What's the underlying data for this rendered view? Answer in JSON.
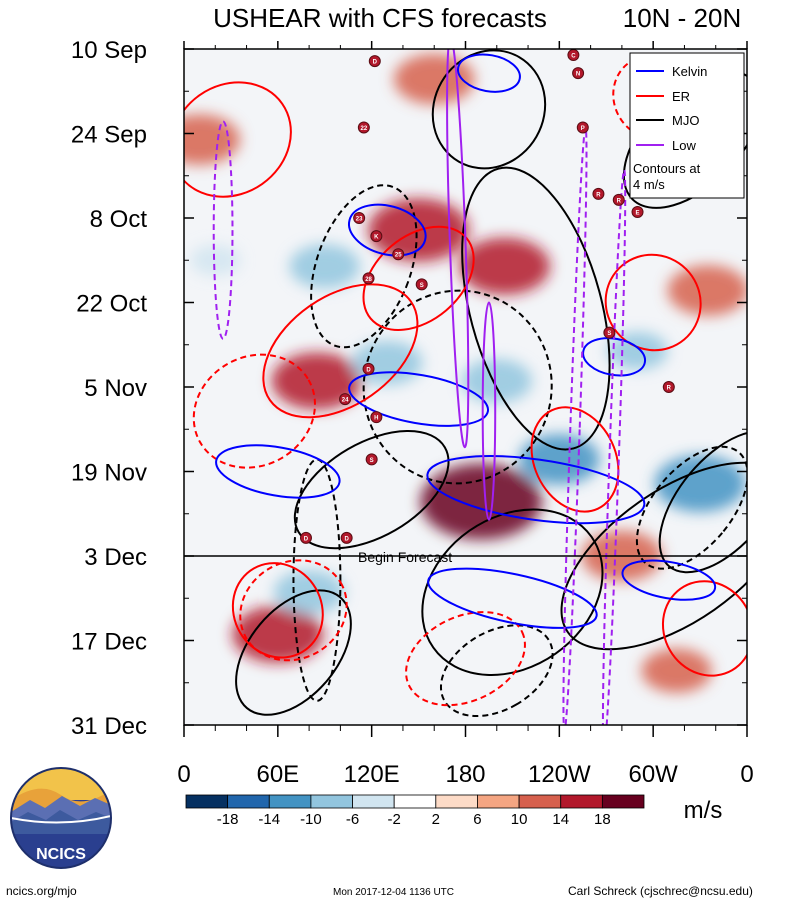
{
  "chart_data": {
    "type": "heatmap",
    "title": "USHEAR with CFS forecasts",
    "latitude_band": "10N - 20N",
    "y_tick_labels": [
      "10 Sep",
      "24 Sep",
      "8 Oct",
      "22 Oct",
      "5 Nov",
      "19 Nov",
      "3 Dec",
      "17 Dec",
      "31 Dec"
    ],
    "x_tick_labels": [
      "0",
      "60E",
      "120E",
      "180",
      "120W",
      "60W",
      "0"
    ],
    "x_range_deg": [
      0,
      360
    ],
    "y_range_days": [
      0,
      112
    ],
    "forecast_start_day": 84,
    "forecast_label": "Begin Forecast",
    "colorbar": {
      "levels": [
        -18,
        -14,
        -10,
        -6,
        -2,
        2,
        6,
        10,
        14,
        18
      ],
      "level_labels": [
        "-18",
        "-14",
        "-10",
        "-6",
        "-2",
        "2",
        "6",
        "10",
        "14",
        "18"
      ],
      "colors": [
        "#053061",
        "#2166ac",
        "#4393c3",
        "#92c5de",
        "#d1e5f0",
        "#ffffff",
        "#fddbc7",
        "#f4a582",
        "#d6604d",
        "#b2182b",
        "#67001f"
      ],
      "units": "m/s"
    },
    "legend": {
      "position": "top-right",
      "items": [
        {
          "label": "Kelvin",
          "color": "#0000ff"
        },
        {
          "label": "ER",
          "color": "#ff0000"
        },
        {
          "label": "MJO",
          "color": "#000000"
        },
        {
          "label": "Low",
          "color": "#a020f0"
        }
      ],
      "note": "Contours at\n4 m/s"
    },
    "anomaly_blobs": [
      {
        "lon": 150,
        "day": 30,
        "value": 16
      },
      {
        "lon": 190,
        "day": 75,
        "value": 20
      },
      {
        "lon": 205,
        "day": 36,
        "value": 14
      },
      {
        "lon": 10,
        "day": 15,
        "value": 12
      },
      {
        "lon": 85,
        "day": 55,
        "value": 14
      },
      {
        "lon": 335,
        "day": 40,
        "value": 12
      },
      {
        "lon": 160,
        "day": 5,
        "value": 12
      },
      {
        "lon": 60,
        "day": 97,
        "value": 14
      },
      {
        "lon": 280,
        "day": 84,
        "value": 12
      },
      {
        "lon": 315,
        "day": 103,
        "value": 10
      },
      {
        "lon": 130,
        "day": 52,
        "value": -10
      },
      {
        "lon": 240,
        "day": 68,
        "value": -12
      },
      {
        "lon": 330,
        "day": 72,
        "value": -14
      },
      {
        "lon": 80,
        "day": 90,
        "value": -10
      },
      {
        "lon": 90,
        "day": 36,
        "value": -10
      },
      {
        "lon": 290,
        "day": 50,
        "value": -8
      },
      {
        "lon": 20,
        "day": 35,
        "value": -6
      },
      {
        "lon": 200,
        "day": 55,
        "value": -10
      }
    ],
    "contours": [
      {
        "wave": "MJO",
        "lon": 225,
        "day": 43,
        "sign": "+",
        "rx": 42,
        "ry": 24,
        "rot": -15
      },
      {
        "wave": "MJO",
        "lon": 210,
        "day": 90,
        "sign": "+",
        "rx": 48,
        "ry": 16,
        "rot": 55
      },
      {
        "wave": "MJO",
        "lon": 315,
        "day": 84,
        "sign": "+",
        "rx": 42,
        "ry": 22,
        "rot": 55
      },
      {
        "wave": "MJO",
        "lon": 70,
        "day": 100,
        "sign": "+",
        "rx": 28,
        "ry": 12,
        "rot": 40
      },
      {
        "wave": "MJO",
        "lon": 120,
        "day": 73,
        "sign": "+",
        "rx": 30,
        "ry": 14,
        "rot": 60
      },
      {
        "wave": "MJO",
        "lon": 345,
        "day": 75,
        "sign": "+",
        "rx": 28,
        "ry": 14,
        "rot": 40
      },
      {
        "wave": "MJO",
        "lon": 195,
        "day": 10,
        "sign": "+",
        "rx": 35,
        "ry": 10,
        "rot": 30
      },
      {
        "wave": "MJO",
        "lon": 325,
        "day": 15,
        "sign": "+",
        "rx": 30,
        "ry": 14,
        "rot": 45
      },
      {
        "wave": "MJO",
        "lon": 175,
        "day": 56,
        "sign": "-",
        "rx": 60,
        "ry": 16,
        "rot": 15
      },
      {
        "wave": "MJO",
        "lon": 115,
        "day": 36,
        "sign": "-",
        "rx": 30,
        "ry": 14,
        "rot": 20
      },
      {
        "wave": "MJO",
        "lon": 325,
        "day": 76,
        "sign": "-",
        "rx": 25,
        "ry": 12,
        "rot": 40
      },
      {
        "wave": "MJO",
        "lon": 85,
        "day": 88,
        "sign": "-",
        "rx": 15,
        "ry": 20,
        "rot": 0
      },
      {
        "wave": "MJO",
        "lon": 200,
        "day": 103,
        "sign": "-",
        "rx": 25,
        "ry": 10,
        "rot": 60
      },
      {
        "wave": "ER",
        "lon": 30,
        "day": 15,
        "sign": "+",
        "rx": 40,
        "ry": 9,
        "rot": -35
      },
      {
        "wave": "ER",
        "lon": 100,
        "day": 50,
        "sign": "+",
        "rx": 55,
        "ry": 9,
        "rot": -35
      },
      {
        "wave": "ER",
        "lon": 250,
        "day": 68,
        "sign": "+",
        "rx": 26,
        "ry": 9,
        "rot": -25
      },
      {
        "wave": "ER",
        "lon": 335,
        "day": 96,
        "sign": "+",
        "rx": 28,
        "ry": 8,
        "rot": -30
      },
      {
        "wave": "ER",
        "lon": 300,
        "day": 42,
        "sign": "+",
        "rx": 30,
        "ry": 8,
        "rot": -40
      },
      {
        "wave": "ER",
        "lon": 60,
        "day": 93,
        "sign": "+",
        "rx": 28,
        "ry": 8,
        "rot": -30
      },
      {
        "wave": "ER",
        "lon": 150,
        "day": 38,
        "sign": "+",
        "rx": 40,
        "ry": 7,
        "rot": -40
      },
      {
        "wave": "ER",
        "lon": 45,
        "day": 60,
        "sign": "-",
        "rx": 40,
        "ry": 9,
        "rot": -30
      },
      {
        "wave": "ER",
        "lon": 180,
        "day": 101,
        "sign": "-",
        "rx": 40,
        "ry": 7,
        "rot": -25
      },
      {
        "wave": "ER",
        "lon": 70,
        "day": 93,
        "sign": "-",
        "rx": 35,
        "ry": 8,
        "rot": -30
      },
      {
        "wave": "ER",
        "lon": 300,
        "day": 8,
        "sign": "-",
        "rx": 25,
        "ry": 7,
        "rot": -30
      },
      {
        "wave": "Kelvin",
        "lon": 225,
        "day": 73,
        "sign": "+",
        "rx": 70,
        "ry": 5,
        "rot": 8
      },
      {
        "wave": "Kelvin",
        "lon": 150,
        "day": 58,
        "sign": "+",
        "rx": 45,
        "ry": 4,
        "rot": 10
      },
      {
        "wave": "Kelvin",
        "lon": 210,
        "day": 91,
        "sign": "+",
        "rx": 55,
        "ry": 4,
        "rot": 12
      },
      {
        "wave": "Kelvin",
        "lon": 60,
        "day": 70,
        "sign": "+",
        "rx": 40,
        "ry": 4,
        "rot": 10
      },
      {
        "wave": "Kelvin",
        "lon": 310,
        "day": 88,
        "sign": "+",
        "rx": 30,
        "ry": 3,
        "rot": 10
      },
      {
        "wave": "Kelvin",
        "lon": 130,
        "day": 30,
        "sign": "+",
        "rx": 25,
        "ry": 4,
        "rot": 15
      },
      {
        "wave": "Kelvin",
        "lon": 195,
        "day": 4,
        "sign": "+",
        "rx": 20,
        "ry": 3,
        "rot": 10
      },
      {
        "wave": "Kelvin",
        "lon": 275,
        "day": 51,
        "sign": "+",
        "rx": 20,
        "ry": 3,
        "rot": 10
      },
      {
        "wave": "Low",
        "lon": 175,
        "day": 32,
        "sign": "+",
        "rx": 5,
        "ry": 34,
        "rot": -2
      },
      {
        "wave": "Low",
        "lon": 195,
        "day": 60,
        "sign": "+",
        "rx": 4,
        "ry": 18,
        "rot": 0
      },
      {
        "wave": "Low",
        "lon": 25,
        "day": 30,
        "sign": "-",
        "rx": 6,
        "ry": 18,
        "rot": 0
      },
      {
        "wave": "Low",
        "lon": 250,
        "day": 63,
        "sign": "-",
        "rx": 3,
        "ry": 50,
        "rot": 2
      },
      {
        "wave": "Low",
        "lon": 275,
        "day": 68,
        "sign": "-",
        "rx": 3,
        "ry": 48,
        "rot": 2
      }
    ],
    "storm_markers": [
      {
        "label": "D",
        "lon": 122,
        "day": 2
      },
      {
        "label": "22",
        "lon": 115,
        "day": 13
      },
      {
        "label": "23",
        "lon": 112,
        "day": 28
      },
      {
        "label": "K",
        "lon": 123,
        "day": 31
      },
      {
        "label": "25",
        "lon": 137,
        "day": 34
      },
      {
        "label": "28",
        "lon": 118,
        "day": 38
      },
      {
        "label": "S",
        "lon": 152,
        "day": 39
      },
      {
        "label": "D",
        "lon": 118,
        "day": 53
      },
      {
        "label": "24",
        "lon": 103,
        "day": 58
      },
      {
        "label": "H",
        "lon": 123,
        "day": 61
      },
      {
        "label": "S",
        "lon": 120,
        "day": 68
      },
      {
        "label": "D",
        "lon": 78,
        "day": 81
      },
      {
        "label": "D",
        "lon": 104,
        "day": 81
      },
      {
        "label": "C",
        "lon": 249,
        "day": 1
      },
      {
        "label": "N",
        "lon": 252,
        "day": 4
      },
      {
        "label": "P",
        "lon": 255,
        "day": 13
      },
      {
        "label": "R",
        "lon": 265,
        "day": 24
      },
      {
        "label": "R",
        "lon": 278,
        "day": 25
      },
      {
        "label": "S",
        "lon": 272,
        "day": 47
      },
      {
        "label": "R",
        "lon": 310,
        "day": 56
      },
      {
        "label": "E",
        "lon": 290,
        "day": 27
      }
    ]
  },
  "footer": {
    "logo_text": "NCICS",
    "site": "ncics.org/mjo",
    "timestamp": "Mon 2017-12-04 1136 UTC",
    "author": "Carl Schreck (cjschrec@ncsu.edu)"
  }
}
